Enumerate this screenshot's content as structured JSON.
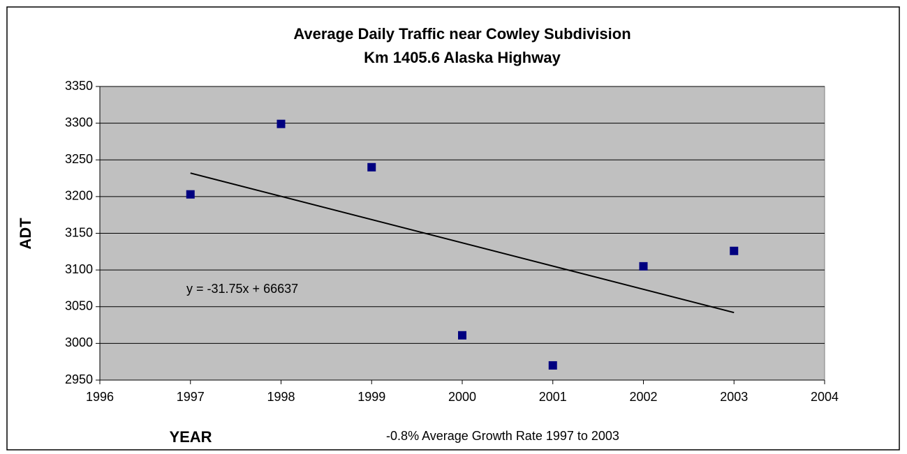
{
  "chart_data": {
    "type": "scatter",
    "title": [
      "Average Daily Traffic near Cowley Subdivision",
      "Km 1405.6 Alaska Highway"
    ],
    "x_label": "YEAR",
    "y_label": "ADT",
    "annotation": "-0.8% Average Growth Rate 1997 to 2003",
    "x": [
      1997,
      1998,
      1999,
      2000,
      2001,
      2002,
      2003
    ],
    "values": [
      3203,
      3299,
      3240,
      3011,
      2970,
      3105,
      3126
    ],
    "color": "#000080",
    "trendline": {
      "label": "y = -31.75x + 66637",
      "x": [
        1997,
        2003
      ],
      "values": [
        3232,
        3042
      ],
      "color": "#000000"
    },
    "xlim": [
      1996,
      2004
    ],
    "xticks": [
      1996,
      1997,
      1998,
      1999,
      2000,
      2001,
      2002,
      2003,
      2004
    ],
    "ylim": [
      2950,
      3350
    ],
    "yticks": [
      2950,
      3000,
      3050,
      3100,
      3150,
      3200,
      3250,
      3300,
      3350
    ],
    "grid": true,
    "plot_background": "#c0c0c0"
  }
}
